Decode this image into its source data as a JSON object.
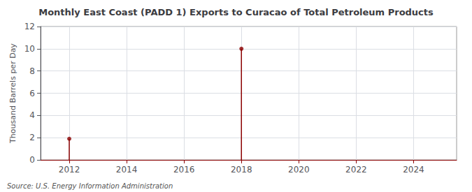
{
  "chart_data": {
    "type": "stem",
    "title": "Monthly East Coast (PADD 1) Exports to Curacao of Total Petroleum Products",
    "ylabel": "Thousand Barrels per Day",
    "annotations": [
      "Source: U.S. Energy Information Administration"
    ],
    "x": [
      2012.0,
      2018.0
    ],
    "values": [
      1.9,
      10.0
    ],
    "color": "#8b0000",
    "xlim": [
      2011.0,
      2025.5
    ],
    "xticks": [
      2012,
      2014,
      2016,
      2018,
      2020,
      2022,
      2024
    ],
    "ylim": [
      0,
      12
    ],
    "yticks": [
      0,
      2,
      4,
      6,
      8,
      10,
      12
    ],
    "grid": true
  }
}
